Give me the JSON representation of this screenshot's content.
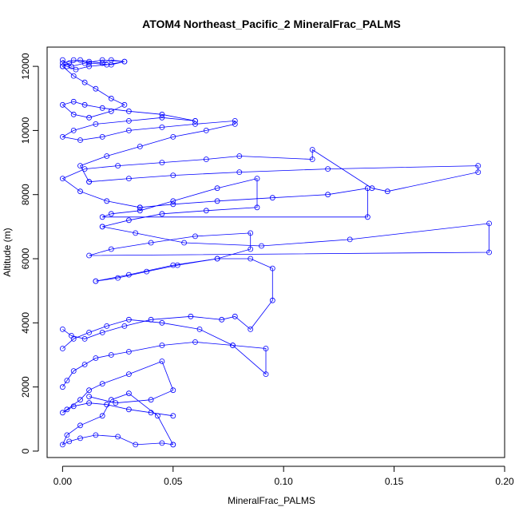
{
  "chart_data": {
    "type": "line",
    "title": "ATOM4 Northeast_Pacific_2 MineralFrac_PALMS",
    "xlabel": "MineralFrac_PALMS",
    "ylabel": "Altitude (m)",
    "xlim": [
      -0.007,
      0.2
    ],
    "ylim": [
      -200,
      12600
    ],
    "x_ticks": [
      0.0,
      0.05,
      0.1,
      0.15,
      0.2
    ],
    "x_tick_labels": [
      "0.00",
      "0.05",
      "0.10",
      "0.15",
      "0.20"
    ],
    "y_ticks": [
      0,
      2000,
      4000,
      6000,
      8000,
      10000,
      12000
    ],
    "y_tick_labels": [
      "0",
      "2000",
      "4000",
      "6000",
      "8000",
      "10000",
      "12000"
    ],
    "series_color": "#0000ff",
    "series": [
      {
        "x": [
          0.05,
          0.045,
          0.033,
          0.025,
          0.015,
          0.008,
          0.003,
          0.0,
          0.002,
          0.008,
          0.018,
          0.022,
          0.03,
          0.043,
          0.05
        ],
        "y": [
          200,
          250,
          200,
          450,
          500,
          400,
          300,
          200,
          500,
          800,
          1100,
          1600,
          1800,
          1100,
          200
        ]
      },
      {
        "x": [
          0.05,
          0.04,
          0.03,
          0.02,
          0.012,
          0.005,
          0.0,
          0.002,
          0.008,
          0.012,
          0.018,
          0.03,
          0.045,
          0.05,
          0.04,
          0.024,
          0.012
        ],
        "y": [
          1100,
          1200,
          1300,
          1450,
          1500,
          1400,
          1200,
          1300,
          1600,
          1900,
          2100,
          2400,
          2800,
          1900,
          1600,
          1500,
          1700
        ]
      },
      {
        "x": [
          0.0,
          0.002,
          0.005,
          0.01,
          0.015,
          0.022,
          0.03,
          0.045,
          0.06,
          0.077,
          0.092,
          0.092,
          0.077,
          0.062,
          0.045,
          0.03,
          0.02,
          0.012,
          0.005,
          0.0
        ],
        "y": [
          2000,
          2200,
          2500,
          2700,
          2900,
          3000,
          3100,
          3300,
          3400,
          3300,
          3200,
          2400,
          3300,
          3800,
          4000,
          4100,
          3900,
          3700,
          3500,
          3200
        ]
      },
      {
        "x": [
          0.0,
          0.004,
          0.01,
          0.018,
          0.028,
          0.04,
          0.058,
          0.072,
          0.078,
          0.085,
          0.095,
          0.095,
          0.085,
          0.07,
          0.05,
          0.03,
          0.015
        ],
        "y": [
          3800,
          3600,
          3500,
          3700,
          3900,
          4100,
          4200,
          4100,
          4200,
          3800,
          4700,
          5700,
          6000,
          6000,
          5800,
          5500,
          5300
        ]
      },
      {
        "x": [
          0.015,
          0.025,
          0.038,
          0.052,
          0.07,
          0.085,
          0.085,
          0.06,
          0.04,
          0.022,
          0.012,
          0.193,
          0.193,
          0.13,
          0.09,
          0.055,
          0.033,
          0.018
        ],
        "y": [
          5300,
          5400,
          5600,
          5800,
          6000,
          6300,
          6800,
          6700,
          6500,
          6300,
          6100,
          6200,
          7100,
          6600,
          6400,
          6500,
          6800,
          7000
        ]
      },
      {
        "x": [
          0.018,
          0.03,
          0.045,
          0.065,
          0.088,
          0.088,
          0.07,
          0.05,
          0.035,
          0.022,
          0.018,
          0.138,
          0.138,
          0.12,
          0.095,
          0.07,
          0.05,
          0.035
        ],
        "y": [
          7000,
          7200,
          7400,
          7500,
          7600,
          8500,
          8200,
          7800,
          7500,
          7400,
          7300,
          7300,
          8200,
          8000,
          7900,
          7800,
          7700,
          7600
        ]
      },
      {
        "x": [
          0.035,
          0.02,
          0.008,
          0.0,
          0.01,
          0.025,
          0.045,
          0.065,
          0.08,
          0.113,
          0.113,
          0.14,
          0.147,
          0.188,
          0.188,
          0.12,
          0.08,
          0.05,
          0.03,
          0.012
        ],
        "y": [
          7600,
          7800,
          8100,
          8500,
          8800,
          8900,
          9000,
          9100,
          9200,
          9100,
          9400,
          8200,
          8100,
          8700,
          8900,
          8800,
          8700,
          8600,
          8500,
          8400
        ]
      },
      {
        "x": [
          0.012,
          0.008,
          0.02,
          0.035,
          0.05,
          0.065,
          0.078,
          0.078,
          0.06,
          0.045,
          0.03,
          0.018,
          0.008,
          0.0,
          0.005,
          0.015,
          0.03,
          0.045,
          0.06
        ],
        "y": [
          8400,
          8900,
          9200,
          9500,
          9800,
          10000,
          10200,
          10300,
          10200,
          10100,
          10000,
          9800,
          9700,
          9800,
          10000,
          10200,
          10300,
          10400,
          10300
        ]
      },
      {
        "x": [
          0.06,
          0.045,
          0.03,
          0.018,
          0.01,
          0.005,
          0.0,
          0.005,
          0.012,
          0.022,
          0.028,
          0.022,
          0.015,
          0.01,
          0.005,
          0.0
        ],
        "y": [
          10300,
          10500,
          10600,
          10700,
          10800,
          10900,
          10800,
          10500,
          10400,
          10600,
          10800,
          11000,
          11300,
          11500,
          11700,
          12000
        ]
      },
      {
        "x": [
          0.0,
          0.003,
          0.008,
          0.012,
          0.018,
          0.022,
          0.028,
          0.02,
          0.012,
          0.006,
          0.002,
          0.0,
          0.005,
          0.012,
          0.022,
          0.028,
          0.018,
          0.01,
          0.004,
          0.0
        ],
        "y": [
          12000,
          12100,
          12200,
          12150,
          12100,
          12200,
          12150,
          12050,
          12000,
          11900,
          12000,
          12100,
          12200,
          12100,
          12050,
          12150,
          12200,
          12100,
          12000,
          12200
        ]
      }
    ]
  }
}
